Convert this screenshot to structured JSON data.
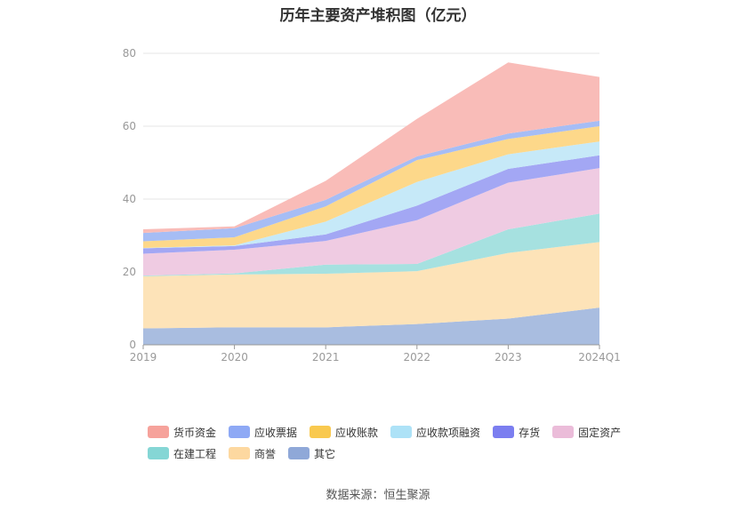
{
  "chart_data": {
    "type": "area",
    "stacked": true,
    "title": "历年主要资产堆积图（亿元）",
    "categories": [
      "2019",
      "2020",
      "2021",
      "2022",
      "2023",
      "2024Q1"
    ],
    "ylim": [
      0,
      80
    ],
    "yticks": [
      0,
      20,
      40,
      60,
      80
    ],
    "grid": true,
    "legend_position": "bottom",
    "series": [
      {
        "name": "其它",
        "color": "#a9bde0",
        "values": [
          4.5,
          4.8,
          4.8,
          5.7,
          7.2,
          10.2
        ]
      },
      {
        "name": "商誉",
        "color": "#fde3b8",
        "values": [
          14.3,
          14.5,
          14.7,
          14.5,
          18.0,
          18.0
        ]
      },
      {
        "name": "在建工程",
        "color": "#a6e1e0",
        "values": [
          0.2,
          0.3,
          2.5,
          2.0,
          6.5,
          7.8
        ]
      },
      {
        "name": "固定资产",
        "color": "#efcbe2",
        "values": [
          6.0,
          6.5,
          6.5,
          12.0,
          12.8,
          12.5
        ]
      },
      {
        "name": "存货",
        "color": "#a3a7f4",
        "values": [
          1.5,
          1.0,
          1.8,
          4.0,
          3.8,
          3.5
        ]
      },
      {
        "name": "应收款项融资",
        "color": "#c6e9f8",
        "values": [
          0.1,
          0.2,
          3.5,
          6.5,
          4.0,
          3.8
        ]
      },
      {
        "name": "应收账款",
        "color": "#fdd88a",
        "values": [
          1.8,
          2.2,
          4.2,
          6.0,
          4.2,
          4.2
        ]
      },
      {
        "name": "应收票据",
        "color": "#a6bdf5",
        "values": [
          2.3,
          2.5,
          1.8,
          1.0,
          1.5,
          1.5
        ]
      },
      {
        "name": "货币资金",
        "color": "#f9bcb8",
        "values": [
          1.0,
          0.5,
          5.2,
          10.3,
          19.5,
          12.0
        ]
      }
    ],
    "legend_colors": {
      "货币资金": "#f6a29b",
      "应收票据": "#8ea9f5",
      "应收账款": "#f9c94f",
      "应收款项融资": "#ade2f7",
      "存货": "#7b7ef0",
      "固定资产": "#ebbcd9",
      "在建工程": "#85d6d5",
      "商誉": "#fdd8a0",
      "其它": "#8fa8d8"
    },
    "legend_order": [
      [
        "货币资金",
        "应收票据",
        "应收账款",
        "应收款项融资",
        "存货",
        "固定资产"
      ],
      [
        "在建工程",
        "商誉",
        "其它"
      ]
    ]
  },
  "source": "数据来源：恒生聚源"
}
